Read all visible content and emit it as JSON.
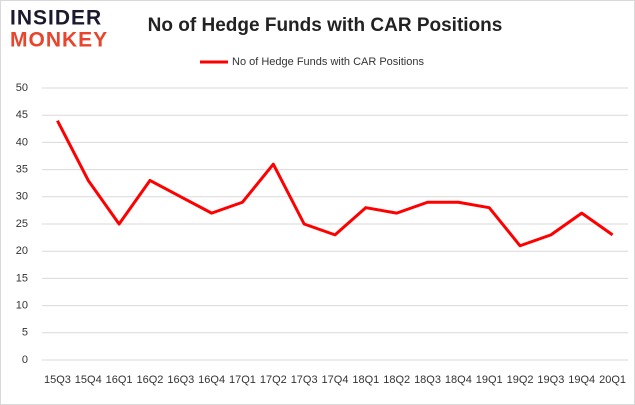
{
  "logo": {
    "top": "INSIDER",
    "bottom": "MONKEY"
  },
  "chart_data": {
    "type": "line",
    "title": "No of Hedge Funds with CAR Positions",
    "categories": [
      "15Q3",
      "15Q4",
      "16Q1",
      "16Q2",
      "16Q3",
      "16Q4",
      "17Q1",
      "17Q2",
      "17Q3",
      "17Q4",
      "18Q1",
      "18Q2",
      "18Q3",
      "18Q4",
      "19Q1",
      "19Q2",
      "19Q3",
      "19Q4",
      "20Q1"
    ],
    "series": [
      {
        "name": "No of Hedge Funds with CAR Positions",
        "color": "#ff0000",
        "values": [
          44,
          33,
          25,
          33,
          30,
          27,
          29,
          36,
          25,
          23,
          28,
          27,
          29,
          29,
          28,
          21,
          23,
          27,
          23
        ]
      }
    ],
    "ylim": [
      0,
      50
    ],
    "yticks": [
      0,
      5,
      10,
      15,
      20,
      25,
      30,
      35,
      40,
      45,
      50
    ],
    "grid": true,
    "legend": "top"
  }
}
